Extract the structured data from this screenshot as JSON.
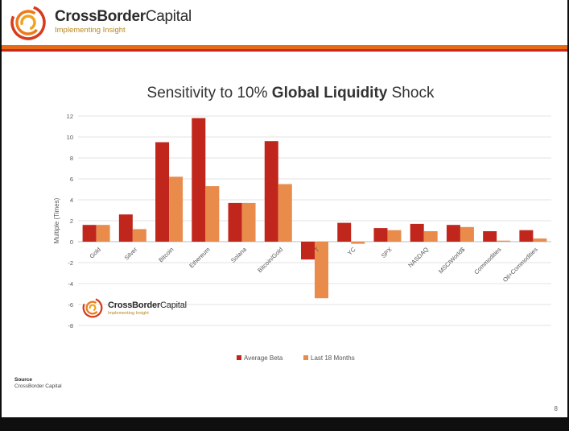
{
  "header": {
    "brand_bold": "CrossBorder",
    "brand_regular": "Capital",
    "tagline": "Implementing Insight"
  },
  "watermark": {
    "brand_bold": "CrossBorder",
    "brand_regular": "Capital",
    "tagline": "Implementing Insight"
  },
  "colors": {
    "average_beta": "#c0261c",
    "last_18_months": "#e98b4a",
    "stripe_orange": "#e56b14",
    "stripe_red": "#c9261c"
  },
  "chart_data": {
    "type": "bar",
    "title_prefix": "Sensitivity to 10% ",
    "title_bold": "Global Liquidity",
    "title_suffix": " Shock",
    "ylabel": "Multiple (Times)",
    "xlabel": "",
    "ylim": [
      -8,
      12
    ],
    "yticks": [
      12,
      10,
      8,
      6,
      4,
      2,
      0,
      -2,
      -4,
      -6,
      -8
    ],
    "grid": true,
    "legend_position": "bottom",
    "categories": [
      "Gold",
      "Silver",
      "Bitcoin",
      "Ethereum",
      "Solana",
      "Bitcoin/Gold",
      "T",
      "YC",
      "SPX",
      "NASDAQ",
      "MSCIWorld$",
      "Commodities",
      "Oil+Commodities"
    ],
    "series": [
      {
        "name": "Average Beta",
        "values": [
          1.6,
          2.6,
          9.5,
          11.8,
          3.7,
          9.6,
          -1.7,
          1.8,
          1.3,
          1.7,
          1.6,
          1.0,
          1.1
        ]
      },
      {
        "name": "Last 18 Months",
        "values": [
          1.6,
          1.2,
          6.2,
          5.3,
          3.7,
          5.5,
          -5.4,
          -0.2,
          1.1,
          1.0,
          1.4,
          0.1,
          0.3
        ]
      }
    ]
  },
  "footer": {
    "source_label": "Source",
    "source_text": "CrossBorder Capital",
    "page_number": "8"
  }
}
